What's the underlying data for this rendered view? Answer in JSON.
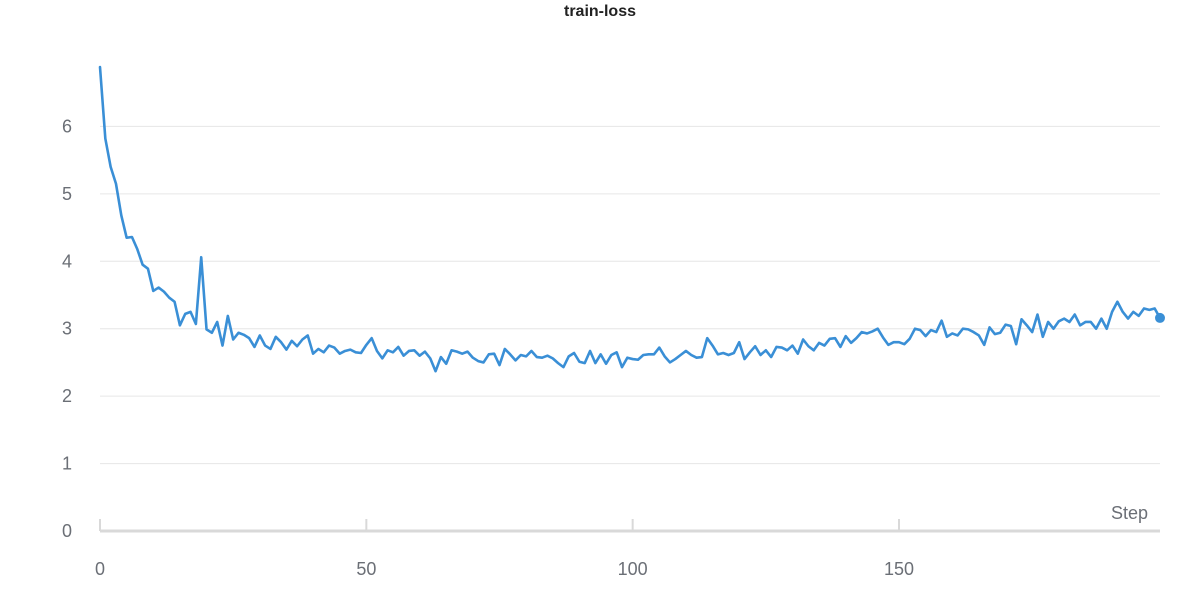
{
  "chart_data": {
    "type": "line",
    "title": "train-loss",
    "xlabel": "Step",
    "ylabel": "",
    "xlim": [
      0,
      199
    ],
    "ylim": [
      0,
      7.0
    ],
    "x_ticks": [
      0,
      50,
      100,
      150
    ],
    "y_ticks": [
      0,
      1,
      2,
      3,
      4,
      5,
      6
    ],
    "grid": true,
    "line_color": "#3a8fd6",
    "grid_color": "#e6e6e6",
    "axis_color": "#d9d9d9",
    "series": [
      {
        "name": "",
        "y": [
          6.88,
          5.82,
          5.4,
          5.15,
          4.68,
          4.35,
          4.36,
          4.18,
          3.95,
          3.89,
          3.56,
          3.61,
          3.55,
          3.46,
          3.4,
          3.05,
          3.22,
          3.25,
          3.07,
          4.06,
          2.99,
          2.94,
          3.1,
          2.75,
          3.19,
          2.84,
          2.94,
          2.91,
          2.86,
          2.73,
          2.9,
          2.75,
          2.7,
          2.88,
          2.8,
          2.69,
          2.82,
          2.74,
          2.84,
          2.9,
          2.63,
          2.7,
          2.65,
          2.75,
          2.72,
          2.63,
          2.67,
          2.69,
          2.65,
          2.64,
          2.76,
          2.86,
          2.67,
          2.56,
          2.68,
          2.65,
          2.73,
          2.6,
          2.67,
          2.68,
          2.6,
          2.66,
          2.56,
          2.37,
          2.58,
          2.48,
          2.68,
          2.66,
          2.63,
          2.66,
          2.57,
          2.52,
          2.5,
          2.62,
          2.63,
          2.46,
          2.7,
          2.62,
          2.53,
          2.61,
          2.59,
          2.67,
          2.58,
          2.57,
          2.6,
          2.56,
          2.49,
          2.43,
          2.59,
          2.64,
          2.51,
          2.49,
          2.67,
          2.49,
          2.62,
          2.48,
          2.61,
          2.65,
          2.43,
          2.57,
          2.55,
          2.54,
          2.61,
          2.62,
          2.62,
          2.72,
          2.59,
          2.5,
          2.55,
          2.61,
          2.67,
          2.61,
          2.57,
          2.58,
          2.86,
          2.75,
          2.62,
          2.64,
          2.61,
          2.64,
          2.8,
          2.55,
          2.65,
          2.74,
          2.61,
          2.68,
          2.58,
          2.73,
          2.72,
          2.68,
          2.75,
          2.63,
          2.84,
          2.74,
          2.68,
          2.79,
          2.75,
          2.85,
          2.86,
          2.73,
          2.89,
          2.79,
          2.86,
          2.95,
          2.93,
          2.96,
          3.0,
          2.87,
          2.76,
          2.8,
          2.8,
          2.77,
          2.85,
          3.0,
          2.98,
          2.89,
          2.98,
          2.95,
          3.12,
          2.88,
          2.93,
          2.9,
          3.0,
          2.99,
          2.95,
          2.9,
          2.76,
          3.02,
          2.92,
          2.94,
          3.06,
          3.04,
          2.77,
          3.14,
          3.05,
          2.95,
          3.21,
          2.88,
          3.1,
          3.0,
          3.11,
          3.15,
          3.1,
          3.21,
          3.05,
          3.1,
          3.1,
          3.0,
          3.15,
          3.0,
          3.25,
          3.4,
          3.25,
          3.15,
          3.25,
          3.19,
          3.3,
          3.28,
          3.3,
          3.16
        ]
      }
    ]
  }
}
